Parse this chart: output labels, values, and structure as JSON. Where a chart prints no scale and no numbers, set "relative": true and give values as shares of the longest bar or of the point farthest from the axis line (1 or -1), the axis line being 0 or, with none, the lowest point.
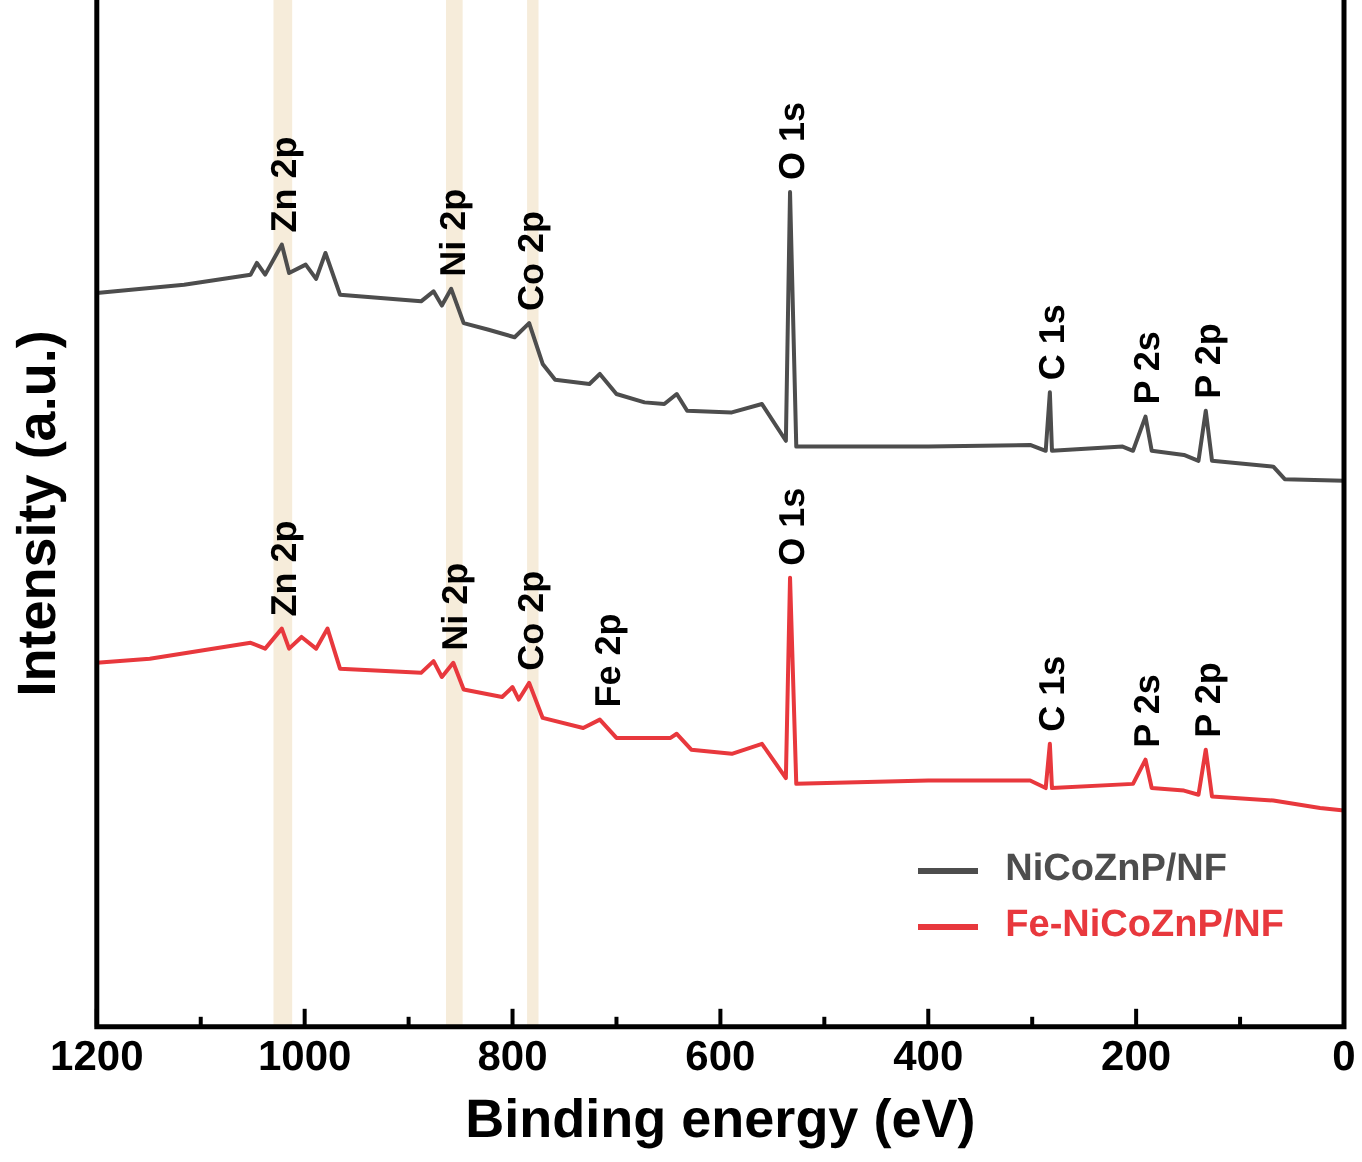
{
  "chart_data": {
    "type": "line",
    "relative": true,
    "xlabel": "Binding energy (eV)",
    "ylabel": "Intensity (a.u.)",
    "xlim": [
      1200,
      0
    ],
    "xticks": [
      1200,
      {
        "value": 1100,
        "label": null
      },
      1000,
      {
        "value": 900,
        "label": null
      },
      800,
      {
        "value": 700,
        "label": null
      },
      600,
      {
        "value": 500,
        "label": null
      },
      400,
      {
        "value": 300,
        "label": null
      },
      200,
      {
        "value": 100,
        "label": null
      },
      0
    ],
    "legend": "bottom right",
    "grid": false,
    "marker": "none",
    "line_style": "solid",
    "bands": [
      {
        "axis": "x",
        "from": 1030,
        "to": 1012,
        "color": "#f6ecda"
      },
      {
        "axis": "x",
        "from": 864,
        "to": 848,
        "color": "#f6ecda"
      },
      {
        "axis": "x",
        "from": 786,
        "to": 775,
        "color": "#f6ecda"
      }
    ],
    "series": [
      {
        "name": "NiCoZnP/NF",
        "color": "#4d4d4d",
        "x": [
          1200,
          1116,
          1052,
          1046,
          1038,
          1022,
          1015,
          999,
          989,
          980,
          966,
          888,
          876,
          868,
          859,
          847,
          823,
          798,
          784,
          771,
          759,
          726,
          716,
          700,
          673,
          654,
          642,
          632,
          589,
          560,
          537,
          533,
          527,
          498,
          400,
          302,
          287,
          283,
          281,
          213,
          203,
          191,
          185,
          154,
          140,
          133,
          127,
          68,
          57,
          0
        ],
        "values": [
          0.879,
          0.889,
          0.901,
          0.915,
          0.901,
          0.937,
          0.903,
          0.913,
          0.896,
          0.927,
          0.877,
          0.869,
          0.881,
          0.864,
          0.884,
          0.843,
          0.835,
          0.826,
          0.843,
          0.794,
          0.775,
          0.77,
          0.782,
          0.758,
          0.748,
          0.746,
          0.758,
          0.738,
          0.736,
          0.746,
          0.702,
          1,
          0.695,
          0.695,
          0.695,
          0.697,
          0.69,
          0.76,
          0.69,
          0.695,
          0.69,
          0.731,
          0.69,
          0.685,
          0.678,
          0.738,
          0.678,
          0.671,
          0.656,
          0.654
        ]
      },
      {
        "name": "Fe-NiCoZnP/NF",
        "color": "#e8383d",
        "x": [
          1200,
          1149,
          1052,
          1038,
          1022,
          1015,
          1003,
          989,
          978,
          966,
          888,
          876,
          868,
          857,
          847,
          810,
          800,
          794,
          784,
          771,
          732,
          716,
          700,
          648,
          642,
          628,
          589,
          560,
          537,
          533,
          527,
          400,
          302,
          287,
          283,
          281,
          203,
          191,
          185,
          154,
          140,
          133,
          127,
          68,
          23,
          0
        ],
        "values": [
          0.436,
          0.441,
          0.46,
          0.453,
          0.477,
          0.453,
          0.467,
          0.453,
          0.477,
          0.429,
          0.424,
          0.438,
          0.419,
          0.436,
          0.404,
          0.395,
          0.407,
          0.392,
          0.412,
          0.37,
          0.358,
          0.368,
          0.346,
          0.346,
          0.351,
          0.332,
          0.327,
          0.339,
          0.298,
          0.538,
          0.291,
          0.295,
          0.295,
          0.286,
          0.339,
          0.286,
          0.291,
          0.32,
          0.286,
          0.283,
          0.278,
          0.332,
          0.276,
          0.271,
          0.262,
          0.259
        ]
      }
    ],
    "annotations": [
      {
        "text": "Zn 2p",
        "x": 1022,
        "y": 0.937
      },
      {
        "text": "Ni 2p",
        "x": 859,
        "y": 0.884
      },
      {
        "text": "Co 2p",
        "x": 784,
        "y": 0.843
      },
      {
        "text": "O 1s",
        "x": 533,
        "y": 1
      },
      {
        "text": "C 1s",
        "x": 283,
        "y": 0.76
      },
      {
        "text": "P 2s",
        "x": 191,
        "y": 0.731
      },
      {
        "text": "P 2p",
        "x": 133,
        "y": 0.738
      },
      {
        "text": "Zn 2p",
        "x": 1022,
        "y": 0.477
      },
      {
        "text": "Ni 2p",
        "x": 857,
        "y": 0.436
      },
      {
        "text": "Co 2p",
        "x": 784,
        "y": 0.412
      },
      {
        "text": "Fe 2p",
        "x": 710,
        "y": 0.368
      },
      {
        "text": "O 1s",
        "x": 533,
        "y": 0.538
      },
      {
        "text": "C 1s",
        "x": 283,
        "y": 0.339
      },
      {
        "text": "P 2s",
        "x": 191,
        "y": 0.32
      },
      {
        "text": "P 2p",
        "x": 133,
        "y": 0.332
      }
    ]
  }
}
